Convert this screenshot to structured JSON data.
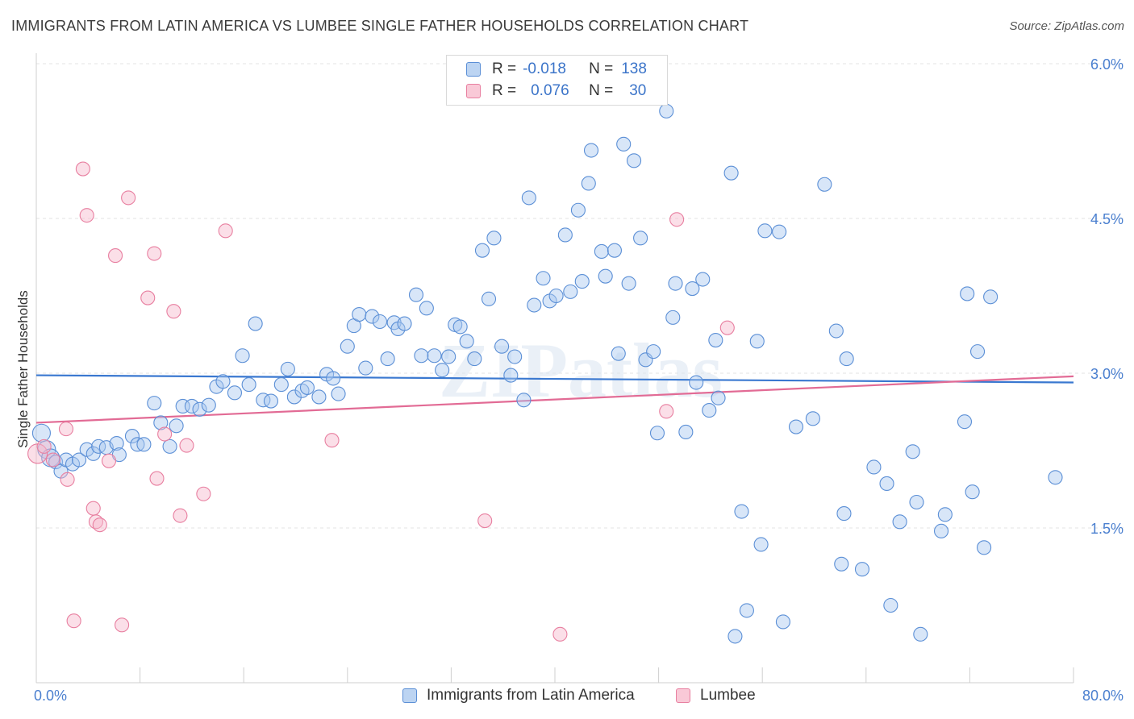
{
  "header": {
    "title": "IMMIGRANTS FROM LATIN AMERICA VS LUMBEE SINGLE FATHER HOUSEHOLDS CORRELATION CHART",
    "source": "Source: ZipAtlas.com"
  },
  "legend_top": {
    "rows": [
      {
        "r_label": "R =",
        "r_value": "-0.018",
        "n_label": "N =",
        "n_value": "138"
      },
      {
        "r_label": "R =",
        "r_value": "0.076",
        "n_label": "N =",
        "n_value": "30"
      }
    ]
  },
  "colors": {
    "blue_fill": "#a9c8ef",
    "blue_stroke": "#5b8fd6",
    "blue_line": "#3a78d0",
    "pink_fill": "#f6b8cb",
    "pink_stroke": "#e87fa0",
    "pink_line": "#e26b95",
    "tick_text": "#4a7fcf"
  },
  "watermark": "ZIPatlas",
  "chart_data": {
    "type": "scatter",
    "title": "IMMIGRANTS FROM LATIN AMERICA VS LUMBEE SINGLE FATHER HOUSEHOLDS CORRELATION CHART",
    "xlabel": "",
    "ylabel": "Single Father Households",
    "xlim": [
      0,
      80
    ],
    "ylim": [
      0,
      6.2
    ],
    "x_tick_labels": [
      "0.0%",
      "80.0%"
    ],
    "y_ticks": [
      1.5,
      3.0,
      4.5,
      6.0
    ],
    "y_tick_labels": [
      "1.5%",
      "3.0%",
      "4.5%",
      "6.0%"
    ],
    "grid": true,
    "series": [
      {
        "name": "Immigrants from Latin America",
        "color": "#5b8fd6",
        "trend": {
          "x": [
            0,
            80
          ],
          "y": [
            2.98,
            2.91
          ]
        },
        "points": [
          [
            0.4,
            2.42
          ],
          [
            0.8,
            2.26
          ],
          [
            1.1,
            2.18
          ],
          [
            1.5,
            2.14
          ],
          [
            1.9,
            2.05
          ],
          [
            2.3,
            2.16
          ],
          [
            2.8,
            2.12
          ],
          [
            3.3,
            2.16
          ],
          [
            3.9,
            2.26
          ],
          [
            4.4,
            2.22
          ],
          [
            4.8,
            2.29
          ],
          [
            5.4,
            2.28
          ],
          [
            6.2,
            2.32
          ],
          [
            6.4,
            2.21
          ],
          [
            7.4,
            2.39
          ],
          [
            7.8,
            2.31
          ],
          [
            8.3,
            2.31
          ],
          [
            9.1,
            2.71
          ],
          [
            9.6,
            2.52
          ],
          [
            10.3,
            2.29
          ],
          [
            10.8,
            2.49
          ],
          [
            11.3,
            2.68
          ],
          [
            12.0,
            2.68
          ],
          [
            12.6,
            2.65
          ],
          [
            13.3,
            2.69
          ],
          [
            13.9,
            2.87
          ],
          [
            14.4,
            2.92
          ],
          [
            15.3,
            2.81
          ],
          [
            15.9,
            3.17
          ],
          [
            16.4,
            2.89
          ],
          [
            16.9,
            3.48
          ],
          [
            17.5,
            2.74
          ],
          [
            18.1,
            2.73
          ],
          [
            18.9,
            2.89
          ],
          [
            19.4,
            3.04
          ],
          [
            19.9,
            2.77
          ],
          [
            20.5,
            2.83
          ],
          [
            20.9,
            2.86
          ],
          [
            21.8,
            2.77
          ],
          [
            22.4,
            2.99
          ],
          [
            22.9,
            2.95
          ],
          [
            23.3,
            2.8
          ],
          [
            24.0,
            3.26
          ],
          [
            24.5,
            3.46
          ],
          [
            24.9,
            3.57
          ],
          [
            25.4,
            3.05
          ],
          [
            25.9,
            3.55
          ],
          [
            26.5,
            3.5
          ],
          [
            27.1,
            3.14
          ],
          [
            27.6,
            3.49
          ],
          [
            27.9,
            3.43
          ],
          [
            28.4,
            3.48
          ],
          [
            29.3,
            3.76
          ],
          [
            29.7,
            3.17
          ],
          [
            30.1,
            3.63
          ],
          [
            30.7,
            3.17
          ],
          [
            31.3,
            3.03
          ],
          [
            31.8,
            3.16
          ],
          [
            32.3,
            3.47
          ],
          [
            32.7,
            3.45
          ],
          [
            33.2,
            3.31
          ],
          [
            33.8,
            3.14
          ],
          [
            34.4,
            4.19
          ],
          [
            34.9,
            3.72
          ],
          [
            35.3,
            4.31
          ],
          [
            35.9,
            3.26
          ],
          [
            36.6,
            2.98
          ],
          [
            36.9,
            3.16
          ],
          [
            37.6,
            2.74
          ],
          [
            38.0,
            4.7
          ],
          [
            38.4,
            3.66
          ],
          [
            39.1,
            3.92
          ],
          [
            39.6,
            3.7
          ],
          [
            40.1,
            3.75
          ],
          [
            40.8,
            4.34
          ],
          [
            41.2,
            3.79
          ],
          [
            41.8,
            4.58
          ],
          [
            42.1,
            3.89
          ],
          [
            42.6,
            4.84
          ],
          [
            42.8,
            5.16
          ],
          [
            43.6,
            4.18
          ],
          [
            43.9,
            3.94
          ],
          [
            44.6,
            4.19
          ],
          [
            44.9,
            3.19
          ],
          [
            45.3,
            5.22
          ],
          [
            45.7,
            3.87
          ],
          [
            46.1,
            5.06
          ],
          [
            46.6,
            4.31
          ],
          [
            47.0,
            3.13
          ],
          [
            47.6,
            3.21
          ],
          [
            47.9,
            2.42
          ],
          [
            48.6,
            5.54
          ],
          [
            49.1,
            3.54
          ],
          [
            49.3,
            3.87
          ],
          [
            50.1,
            2.43
          ],
          [
            50.6,
            3.82
          ],
          [
            50.9,
            2.91
          ],
          [
            51.4,
            3.91
          ],
          [
            51.9,
            2.64
          ],
          [
            52.4,
            3.32
          ],
          [
            52.6,
            2.76
          ],
          [
            53.6,
            4.94
          ],
          [
            53.9,
            0.45
          ],
          [
            54.4,
            1.66
          ],
          [
            54.8,
            0.7
          ],
          [
            55.6,
            3.31
          ],
          [
            55.9,
            1.34
          ],
          [
            56.2,
            4.38
          ],
          [
            57.3,
            4.37
          ],
          [
            57.6,
            0.59
          ],
          [
            58.6,
            2.48
          ],
          [
            59.9,
            2.56
          ],
          [
            60.8,
            4.83
          ],
          [
            61.7,
            3.41
          ],
          [
            62.1,
            1.15
          ],
          [
            62.3,
            1.64
          ],
          [
            62.5,
            3.14
          ],
          [
            63.7,
            1.1
          ],
          [
            64.6,
            2.09
          ],
          [
            65.6,
            1.93
          ],
          [
            65.9,
            0.75
          ],
          [
            66.6,
            1.56
          ],
          [
            67.6,
            2.24
          ],
          [
            67.9,
            1.75
          ],
          [
            68.2,
            0.47
          ],
          [
            69.8,
            1.47
          ],
          [
            70.1,
            1.63
          ],
          [
            71.6,
            2.53
          ],
          [
            71.8,
            3.77
          ],
          [
            72.2,
            1.85
          ],
          [
            72.6,
            3.21
          ],
          [
            73.1,
            1.31
          ],
          [
            73.6,
            3.74
          ],
          [
            78.6,
            1.99
          ]
        ]
      },
      {
        "name": "Lumbee",
        "color": "#e87fa0",
        "trend": {
          "x": [
            0,
            80
          ],
          "y": [
            2.52,
            2.97
          ]
        },
        "points": [
          [
            0.1,
            2.22
          ],
          [
            0.6,
            2.29
          ],
          [
            1.3,
            2.16
          ],
          [
            2.3,
            2.46
          ],
          [
            2.4,
            1.97
          ],
          [
            2.9,
            0.6
          ],
          [
            3.6,
            4.98
          ],
          [
            3.9,
            4.53
          ],
          [
            4.4,
            1.69
          ],
          [
            4.6,
            1.56
          ],
          [
            4.9,
            1.53
          ],
          [
            5.6,
            2.15
          ],
          [
            6.1,
            4.14
          ],
          [
            6.6,
            0.56
          ],
          [
            7.1,
            4.7
          ],
          [
            8.6,
            3.73
          ],
          [
            9.1,
            4.16
          ],
          [
            9.3,
            1.98
          ],
          [
            9.9,
            2.41
          ],
          [
            10.6,
            3.6
          ],
          [
            11.1,
            1.62
          ],
          [
            11.6,
            2.3
          ],
          [
            12.9,
            1.83
          ],
          [
            14.6,
            4.38
          ],
          [
            22.8,
            2.35
          ],
          [
            34.6,
            1.57
          ],
          [
            40.4,
            0.47
          ],
          [
            48.6,
            2.63
          ],
          [
            49.4,
            4.49
          ],
          [
            53.3,
            3.44
          ]
        ]
      }
    ]
  },
  "bottom_legend": {
    "items": [
      "Immigrants from Latin America",
      "Lumbee"
    ]
  }
}
